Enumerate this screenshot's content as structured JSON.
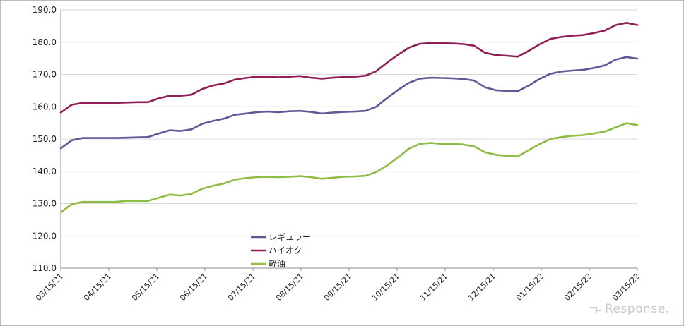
{
  "chart_data": {
    "type": "line",
    "title": "",
    "xlabel": "",
    "ylabel": "",
    "ylim": [
      110,
      190
    ],
    "yticks": [
      "110.0",
      "120.0",
      "130.0",
      "140.0",
      "150.0",
      "160.0",
      "170.0",
      "180.0",
      "190.0"
    ],
    "xtick_labels": [
      "03/15/21",
      "04/15/21",
      "05/15/21",
      "06/15/21",
      "07/15/21",
      "08/15/21",
      "09/15/21",
      "10/15/21",
      "11/15/21",
      "12/15/21",
      "01/15/22",
      "02/15/22",
      "03/15/22"
    ],
    "grid": "horizontal",
    "legend_position": "lower-center",
    "series": [
      {
        "name": "レギュラー",
        "color": "#5c5a96",
        "values": [
          147.1,
          149.6,
          150.3,
          150.3,
          150.3,
          150.3,
          150.4,
          150.5,
          150.6,
          151.7,
          152.7,
          152.5,
          153.0,
          154.7,
          155.6,
          156.3,
          157.5,
          157.9,
          158.3,
          158.5,
          158.3,
          158.6,
          158.7,
          158.4,
          157.9,
          158.2,
          158.4,
          158.5,
          158.7,
          160.0,
          162.7,
          165.2,
          167.4,
          168.7,
          169.0,
          168.9,
          168.8,
          168.6,
          168.1,
          166.0,
          165.1,
          164.9,
          164.8,
          166.5,
          168.6,
          170.2,
          170.9,
          171.2,
          171.4,
          172.0,
          172.8,
          174.6,
          175.4,
          174.9
        ]
      },
      {
        "name": "ハイオク",
        "color": "#8f1f56",
        "values": [
          158.2,
          160.6,
          161.2,
          161.1,
          161.1,
          161.2,
          161.3,
          161.4,
          161.4,
          162.6,
          163.4,
          163.4,
          163.7,
          165.5,
          166.6,
          167.2,
          168.4,
          168.9,
          169.3,
          169.3,
          169.1,
          169.3,
          169.5,
          169.0,
          168.7,
          169.0,
          169.2,
          169.3,
          169.6,
          171.0,
          173.7,
          176.1,
          178.3,
          179.5,
          179.7,
          179.7,
          179.6,
          179.4,
          178.9,
          176.7,
          176.0,
          175.8,
          175.5,
          177.3,
          179.3,
          181.0,
          181.6,
          182.0,
          182.2,
          182.8,
          183.6,
          185.3,
          186.0,
          185.3
        ]
      },
      {
        "name": "軽油",
        "color": "#8fbc45",
        "values": [
          127.3,
          129.8,
          130.5,
          130.5,
          130.5,
          130.5,
          130.8,
          130.8,
          130.8,
          131.8,
          132.8,
          132.5,
          133.0,
          134.6,
          135.5,
          136.2,
          137.4,
          137.9,
          138.2,
          138.3,
          138.2,
          138.3,
          138.5,
          138.2,
          137.7,
          138.0,
          138.3,
          138.4,
          138.6,
          139.8,
          141.8,
          144.3,
          147.0,
          148.5,
          148.8,
          148.5,
          148.5,
          148.3,
          147.7,
          145.9,
          145.1,
          144.8,
          144.6,
          146.5,
          148.4,
          150.0,
          150.6,
          151.0,
          151.2,
          151.7,
          152.3,
          153.6,
          154.9,
          154.3
        ]
      }
    ]
  },
  "watermark": {
    "text": "Response.",
    "icon": "response-logo-icon"
  }
}
